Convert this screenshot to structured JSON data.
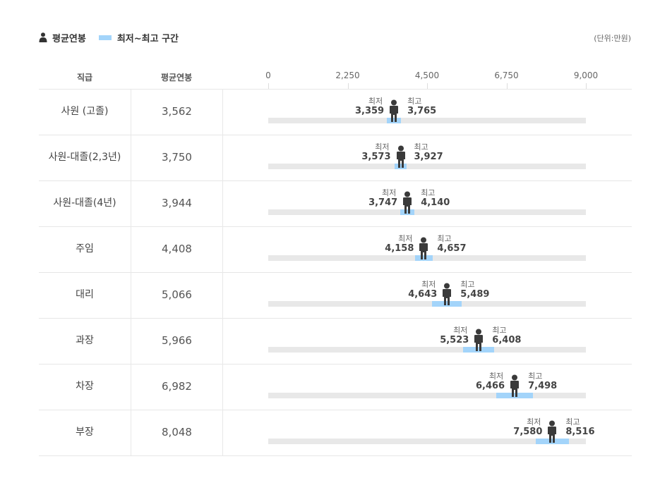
{
  "legend": {
    "avg_label": "평균연봉",
    "range_label": "최저~최고 구간",
    "person_icon": "person-icon",
    "range_color": "#a3d4fa"
  },
  "unit": "(단위:만원)",
  "header": {
    "col_position": "직급",
    "col_avg": "평균연봉"
  },
  "range_texts": {
    "min": "최저",
    "max": "최고"
  },
  "chart_data": {
    "type": "bar",
    "x_ticks": [
      "0",
      "2,250",
      "4,500",
      "6,750",
      "9,000"
    ],
    "xlim": [
      0,
      9000
    ],
    "categories": [
      "사원 (고졸)",
      "사원-대졸(2,3년)",
      "사원-대졸(4년)",
      "주임",
      "대리",
      "과장",
      "차장",
      "부장"
    ],
    "avg_display": [
      "3,562",
      "3,750",
      "3,944",
      "4,408",
      "5,066",
      "5,966",
      "6,982",
      "8,048"
    ],
    "avg": [
      3562,
      3750,
      3944,
      4408,
      5066,
      5966,
      6982,
      8048
    ],
    "min": [
      3359,
      3573,
      3747,
      4158,
      4643,
      5523,
      6466,
      7580
    ],
    "max": [
      3765,
      3927,
      4140,
      4657,
      5489,
      6408,
      7498,
      8516
    ],
    "min_display": [
      "3,359",
      "3,573",
      "3,747",
      "4,158",
      "4,643",
      "5,523",
      "6,466",
      "7,580"
    ],
    "max_display": [
      "3,765",
      "3,927",
      "4,140",
      "4,657",
      "5,489",
      "6,408",
      "7,498",
      "8,516"
    ]
  }
}
